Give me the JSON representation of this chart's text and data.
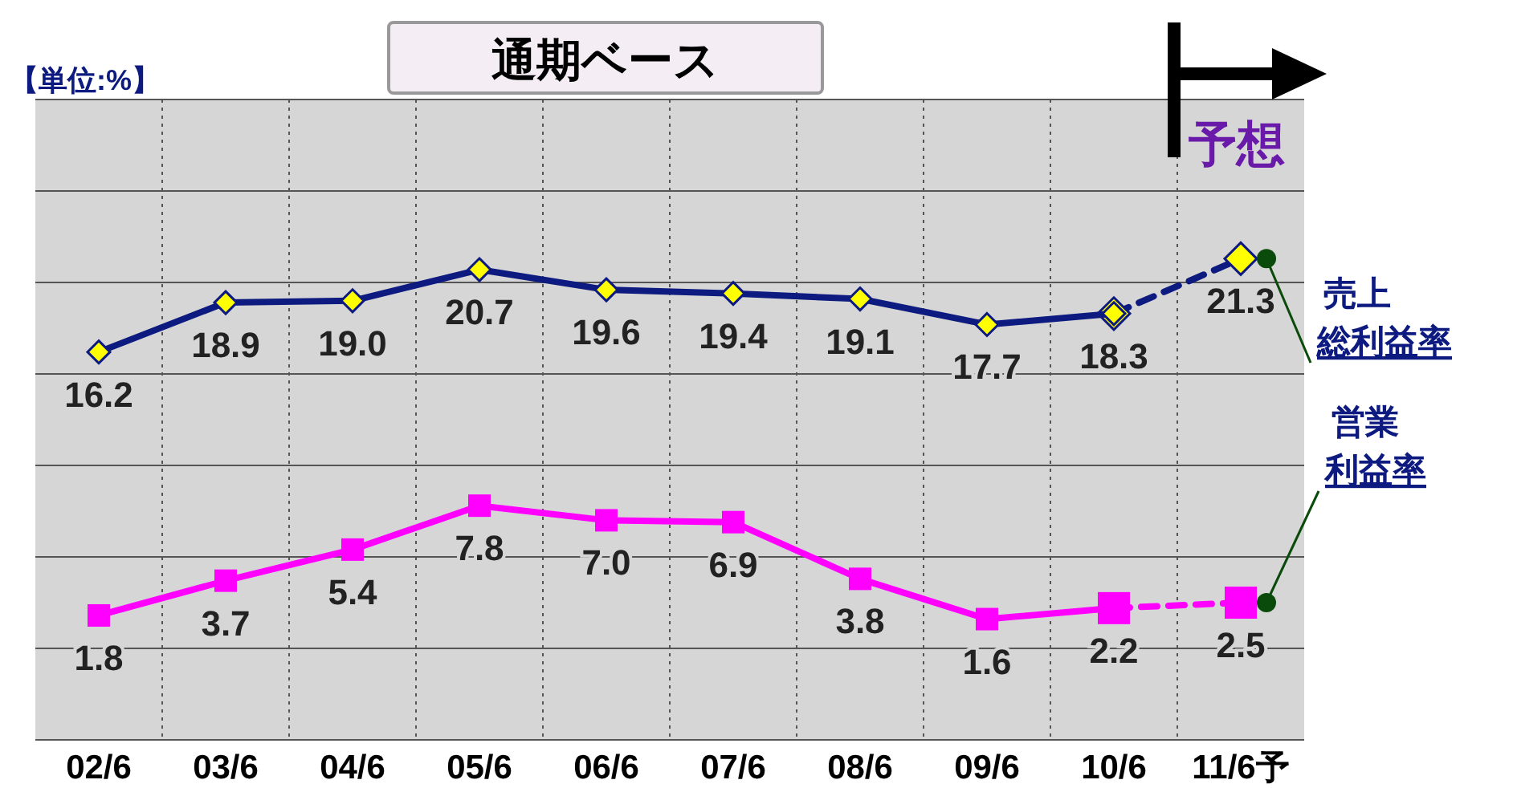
{
  "chart_data": {
    "type": "line",
    "title": "通期ベース",
    "categories": [
      "02/6",
      "03/6",
      "04/6",
      "05/6",
      "06/6",
      "07/6",
      "08/6",
      "09/6",
      "10/6",
      "11/6予"
    ],
    "series": [
      {
        "name": "売上総利益率",
        "color": "#0d1a80",
        "marker": "diamond",
        "line_style": "solid",
        "values": [
          16.2,
          18.9,
          19.0,
          20.7,
          19.6,
          19.4,
          19.1,
          17.7,
          18.3,
          null
        ],
        "value_labels": [
          "16.2",
          "18.9",
          "19.0",
          "20.7",
          "19.6",
          "19.4",
          "19.1",
          "17.7",
          "18.3",
          null
        ]
      },
      {
        "color": "#0d1a80",
        "marker": "diamond",
        "line_style": "dashed",
        "values": [
          null,
          null,
          null,
          null,
          null,
          null,
          null,
          null,
          18.3,
          21.3
        ],
        "value_labels": [
          null,
          null,
          null,
          null,
          null,
          null,
          null,
          null,
          null,
          "21.3"
        ]
      },
      {
        "name": "営業利益率",
        "color": "#ff00ff",
        "marker": "square",
        "line_style": "solid",
        "values": [
          1.8,
          3.7,
          5.4,
          7.8,
          7.0,
          6.9,
          3.8,
          1.6,
          2.2,
          null
        ],
        "value_labels": [
          "1.8",
          "3.7",
          "5.4",
          "7.8",
          "7.0",
          "6.9",
          "3.8",
          "1.6",
          "2.2",
          null
        ]
      },
      {
        "color": "#ff00ff",
        "marker": "square",
        "line_style": "dashed",
        "values": [
          null,
          null,
          null,
          null,
          null,
          null,
          null,
          null,
          2.2,
          2.5
        ],
        "value_labels": [
          null,
          null,
          null,
          null,
          null,
          null,
          null,
          null,
          null,
          "2.5"
        ]
      }
    ],
    "ylim": [
      -5,
      30
    ],
    "yticks": [
      {
        "value": -5,
        "label": null
      },
      {
        "value": 0,
        "label": null
      },
      {
        "value": 5,
        "label": null
      },
      {
        "value": 10,
        "label": null
      },
      {
        "value": 15,
        "label": null
      },
      {
        "value": 20,
        "label": null
      },
      {
        "value": 25,
        "label": null
      },
      {
        "value": 30,
        "label": null
      }
    ],
    "tick_labels": "x",
    "grid": true,
    "annotations": [
      "【単位:%】",
      "予想"
    ]
  }
}
